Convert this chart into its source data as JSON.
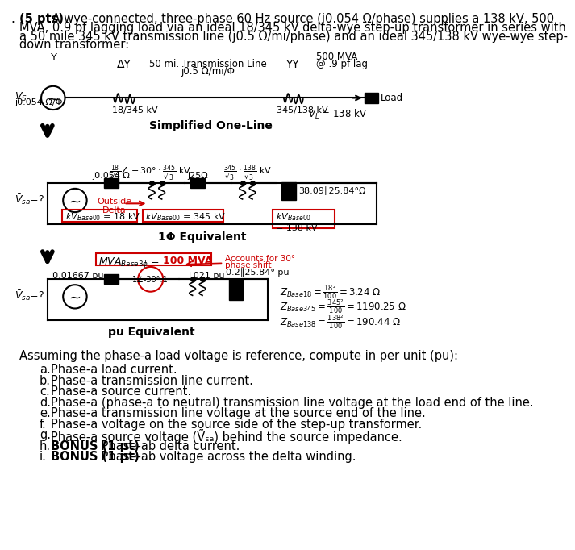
{
  "bg_color": "#ffffff",
  "text_color": "#000000",
  "red_color": "#cc0000",
  "problem_lines": [
    {
      "bold": "(5 pts)",
      "normal": " A wye-connected, three-phase 60 Hz source (j0.054 Ω/phase) supplies a 138 kV, 500"
    },
    {
      "bold": "",
      "normal": "MVA, 0.9 pf lagging load via an ideal 18/345 kV delta-wye step-up transformer in series with"
    },
    {
      "bold": "",
      "normal": "a 50 mile 345 kV transmission line (j0.5 Ω/mi/phase) and an ideal 345/138 kV wye-wye step-"
    },
    {
      "bold": "",
      "normal": "down transformer:"
    }
  ],
  "question_items": [
    {
      "letter": "a.",
      "bold_prefix": "",
      "text": "Phase-a load current."
    },
    {
      "letter": "b.",
      "bold_prefix": "",
      "text": "Phase-a transmission line current."
    },
    {
      "letter": "c.",
      "bold_prefix": "",
      "text": "Phase-a source current."
    },
    {
      "letter": "d.",
      "bold_prefix": "",
      "text": "Phase-a (phase-a to neutral) transmission line voltage at the load end of the line."
    },
    {
      "letter": "e.",
      "bold_prefix": "",
      "text": "Phase-a transmission line voltage at the source end of the line."
    },
    {
      "letter": "f.",
      "bold_prefix": "",
      "text": "Phase-a voltage on the source side of the step-up transformer."
    },
    {
      "letter": "g.",
      "bold_prefix": "",
      "text": "Phase-a source voltage (Ṽₛₐ) behind the source impedance."
    },
    {
      "letter": "h.",
      "bold_prefix": "BONUS (1 pt)",
      "text": " Phase-ab delta current."
    },
    {
      "letter": "i.",
      "bold_prefix": "BONUS (1 pt)",
      "text": " Phase-ab voltage across the delta winding."
    }
  ]
}
